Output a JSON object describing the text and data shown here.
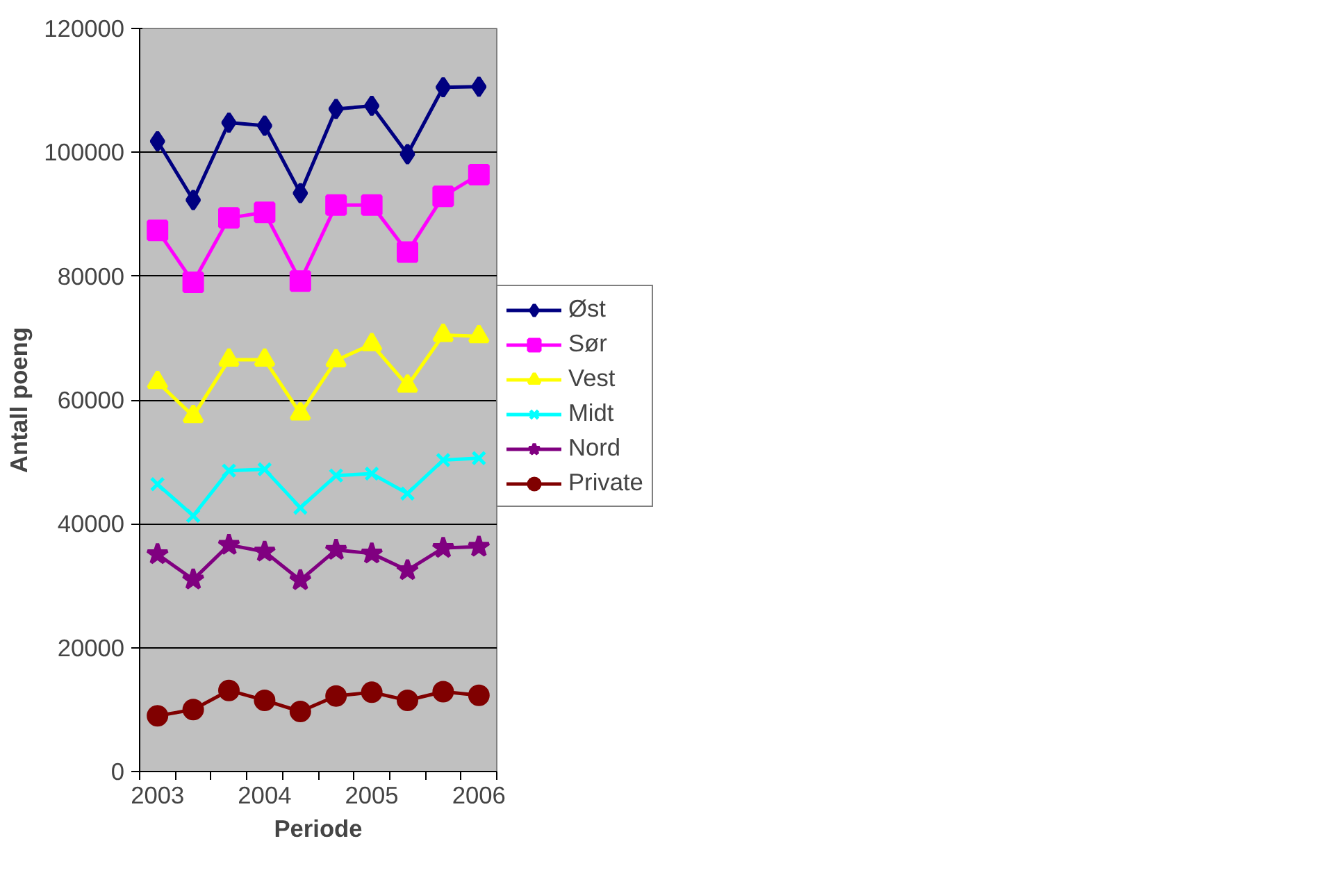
{
  "chart_data": {
    "type": "line",
    "xlabel": "Periode",
    "ylabel": "Antall poeng",
    "categories": [
      "2003",
      null,
      null,
      "2004",
      null,
      null,
      "2005",
      null,
      null,
      "2006"
    ],
    "ylim": [
      0,
      120000
    ],
    "yticks": [
      0,
      20000,
      40000,
      60000,
      80000,
      100000,
      120000
    ],
    "grid": "y",
    "legend": "right",
    "series": [
      {
        "name": "Øst",
        "color": "#000080",
        "marker": "diamond",
        "values": [
          101800,
          92300,
          104800,
          104300,
          93400,
          107000,
          107500,
          99700,
          110500,
          110600
        ]
      },
      {
        "name": "Sør",
        "color": "#ff00ff",
        "marker": "square",
        "values": [
          87400,
          79000,
          89400,
          90300,
          79200,
          91500,
          91500,
          83900,
          92900,
          96400
        ]
      },
      {
        "name": "Vest",
        "color": "#ffff00",
        "marker": "triangle",
        "values": [
          62900,
          57400,
          66500,
          66500,
          57800,
          66400,
          69000,
          62300,
          70500,
          70300
        ]
      },
      {
        "name": "Midt",
        "color": "#00ffff",
        "marker": "cross",
        "values": [
          46400,
          41300,
          48600,
          48800,
          42600,
          47800,
          48100,
          44900,
          50300,
          50600
        ]
      },
      {
        "name": "Nord",
        "color": "#800080",
        "marker": "star",
        "values": [
          35100,
          31000,
          36600,
          35500,
          30900,
          35800,
          35200,
          32500,
          36100,
          36300
        ]
      },
      {
        "name": "Private",
        "color": "#800000",
        "marker": "circle",
        "values": [
          9000,
          10000,
          13100,
          11500,
          9700,
          12200,
          12800,
          11500,
          12900,
          12300
        ]
      }
    ]
  }
}
